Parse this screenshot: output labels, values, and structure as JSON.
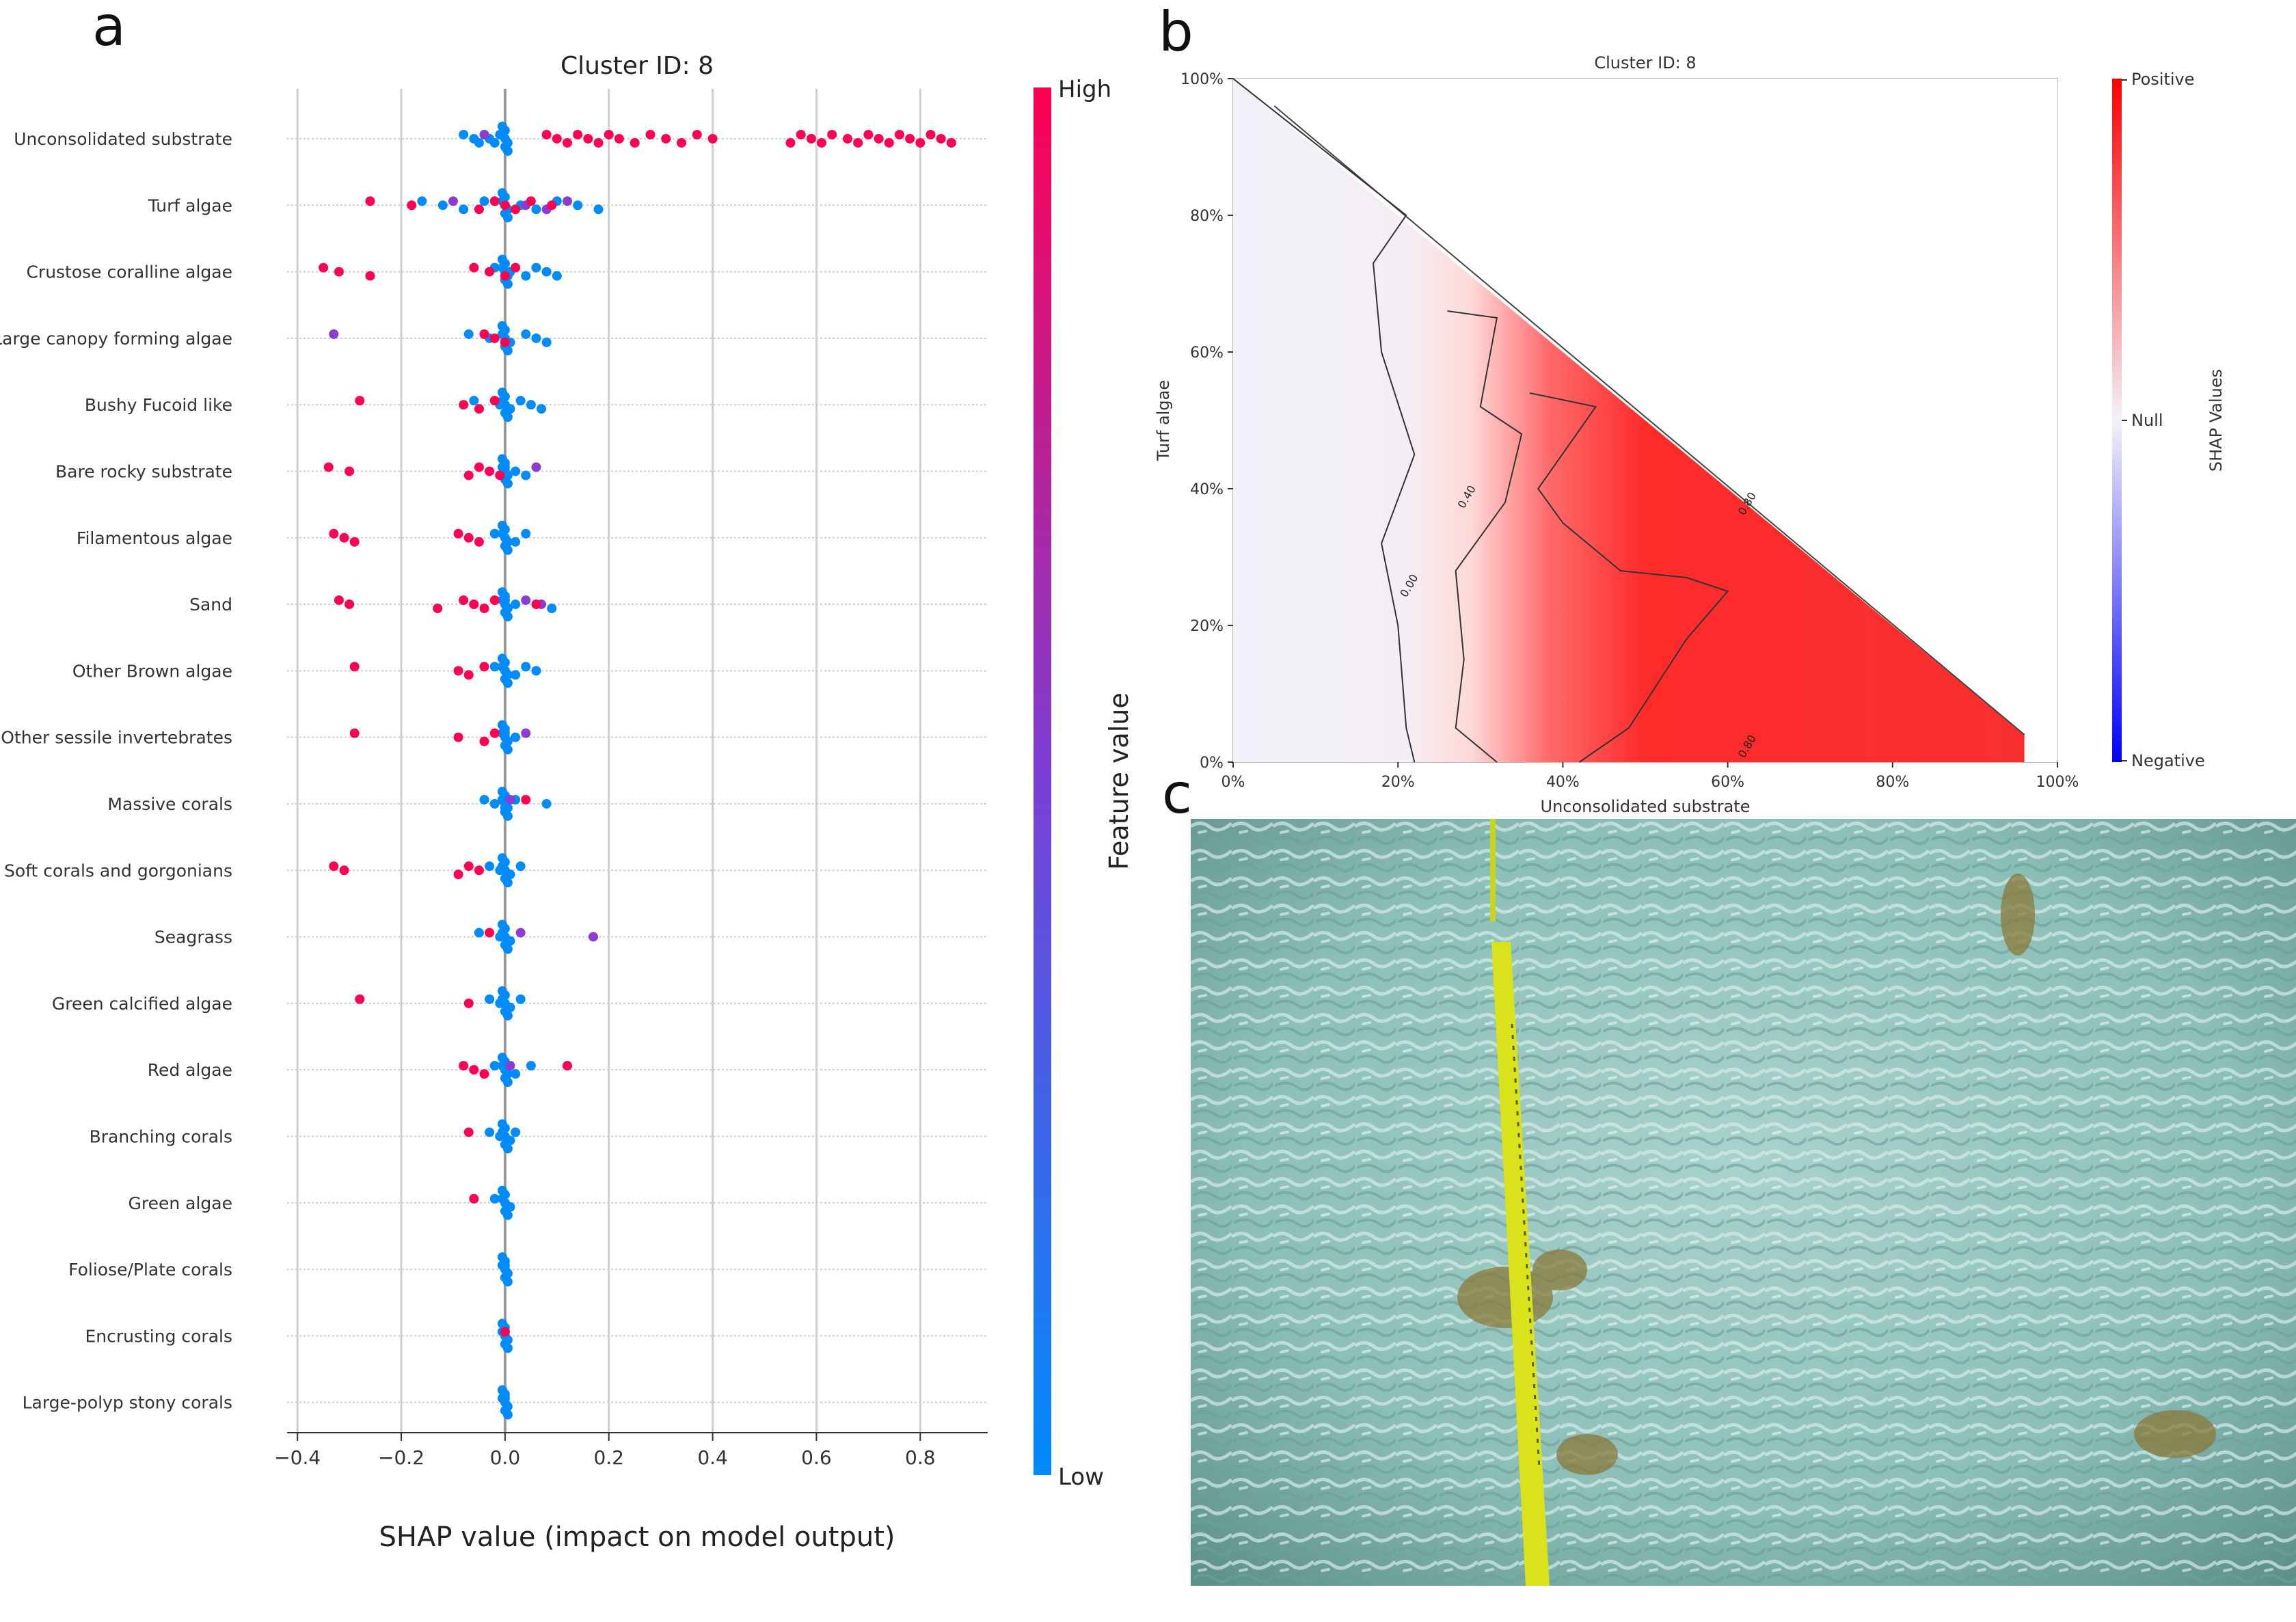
{
  "panels": {
    "a_letter": "a",
    "b_letter": "b",
    "c_letter": "c"
  },
  "chart_data": [
    {
      "type": "scatter",
      "subtype": "shap-beeswarm",
      "title": "Cluster ID: 8",
      "xlabel": "SHAP value (impact on model output)",
      "ylabel": "",
      "xlim": [
        -0.42,
        0.93
      ],
      "xticks": [
        -0.4,
        -0.2,
        0.0,
        0.2,
        0.4,
        0.6,
        0.8
      ],
      "xtick_labels": [
        "−0.4",
        "−0.2",
        "0.0",
        "0.2",
        "0.4",
        "0.6",
        "0.8"
      ],
      "grid": true,
      "colorbar": {
        "label": "Feature value",
        "high": "High",
        "low": "Low",
        "high_color": "#ff0052",
        "low_color": "#008bfb"
      },
      "features": [
        {
          "name": "Unconsolidated substrate",
          "high_points": [
            0.08,
            0.1,
            0.12,
            0.14,
            0.16,
            0.18,
            0.2,
            0.22,
            0.25,
            0.28,
            0.31,
            0.34,
            0.37,
            0.4,
            0.55,
            0.57,
            0.59,
            0.61,
            0.63,
            0.66,
            0.68,
            0.7,
            0.72,
            0.74,
            0.76,
            0.78,
            0.8,
            0.82,
            0.84,
            0.86
          ],
          "low_points": [
            -0.08,
            -0.06,
            -0.05,
            -0.04,
            -0.03,
            -0.02,
            -0.01
          ],
          "mid_points": [
            -0.04
          ]
        },
        {
          "name": "Turf algae",
          "high_points": [
            -0.26,
            -0.18,
            -0.05,
            -0.02,
            0.0,
            0.02,
            0.05,
            0.09
          ],
          "low_points": [
            -0.16,
            -0.12,
            -0.08,
            -0.04,
            0.03,
            0.06,
            0.1,
            0.14,
            0.18
          ],
          "mid_points": [
            -0.1,
            0.04,
            0.08,
            0.12
          ]
        },
        {
          "name": "Crustose coralline algae",
          "high_points": [
            -0.35,
            -0.32,
            -0.26,
            -0.06,
            -0.03,
            0.0,
            0.02
          ],
          "low_points": [
            -0.02,
            0.01,
            0.04,
            0.06,
            0.08,
            0.1
          ],
          "mid_points": []
        },
        {
          "name": "Large canopy forming algae",
          "high_points": [
            -0.04,
            -0.02,
            0.0
          ],
          "low_points": [
            -0.07,
            -0.03,
            0.01,
            0.04,
            0.06,
            0.08
          ],
          "mid_points": [
            -0.33
          ]
        },
        {
          "name": "Bushy Fucoid like",
          "high_points": [
            -0.28,
            -0.08,
            -0.05,
            -0.02
          ],
          "low_points": [
            -0.06,
            -0.01,
            0.01,
            0.03,
            0.05,
            0.07
          ],
          "mid_points": []
        },
        {
          "name": "Bare rocky substrate",
          "high_points": [
            -0.34,
            -0.3,
            -0.07,
            -0.05,
            -0.03,
            -0.01
          ],
          "low_points": [
            0.0,
            0.02,
            0.04
          ],
          "mid_points": [
            0.06
          ]
        },
        {
          "name": "Filamentous algae",
          "high_points": [
            -0.33,
            -0.31,
            -0.29,
            -0.09,
            -0.07,
            -0.05
          ],
          "low_points": [
            -0.02,
            0.0,
            0.02,
            0.04
          ],
          "mid_points": []
        },
        {
          "name": "Sand",
          "high_points": [
            -0.32,
            -0.3,
            -0.13,
            -0.08,
            -0.06,
            -0.04,
            -0.02,
            0.06
          ],
          "low_points": [
            0.0,
            0.02,
            0.09
          ],
          "mid_points": [
            0.04,
            0.07
          ]
        },
        {
          "name": "Other Brown algae",
          "high_points": [
            -0.29,
            -0.09,
            -0.07,
            -0.04
          ],
          "low_points": [
            -0.02,
            0.0,
            0.02,
            0.04,
            0.06
          ],
          "mid_points": []
        },
        {
          "name": "Other sessile invertebrates",
          "high_points": [
            -0.29,
            -0.09,
            -0.04,
            -0.02
          ],
          "low_points": [
            0.0,
            0.02
          ],
          "mid_points": [
            0.04
          ]
        },
        {
          "name": "Massive corals",
          "high_points": [
            0.04
          ],
          "low_points": [
            -0.04,
            -0.02,
            0.0,
            0.02,
            0.08
          ],
          "mid_points": [
            0.01
          ]
        },
        {
          "name": "Soft corals and gorgonians",
          "high_points": [
            -0.33,
            -0.31,
            -0.09,
            -0.07,
            -0.05
          ],
          "low_points": [
            -0.03,
            -0.01,
            0.01,
            0.03
          ],
          "mid_points": []
        },
        {
          "name": "Seagrass",
          "high_points": [
            -0.03
          ],
          "low_points": [
            -0.05,
            -0.01,
            0.01
          ],
          "mid_points": [
            0.03,
            0.17
          ]
        },
        {
          "name": "Green calcified algae",
          "high_points": [
            -0.28,
            -0.07
          ],
          "low_points": [
            -0.03,
            -0.01,
            0.01,
            0.03
          ],
          "mid_points": []
        },
        {
          "name": "Red algae",
          "high_points": [
            -0.08,
            -0.06,
            -0.04,
            0.12
          ],
          "low_points": [
            -0.02,
            0.0,
            0.02,
            0.05
          ],
          "mid_points": [
            0.01
          ]
        },
        {
          "name": "Branching corals",
          "high_points": [
            -0.07
          ],
          "low_points": [
            -0.03,
            -0.01,
            0.01,
            0.02
          ],
          "mid_points": []
        },
        {
          "name": "Green algae",
          "high_points": [
            -0.06
          ],
          "low_points": [
            -0.02,
            0.0,
            0.01
          ],
          "mid_points": []
        },
        {
          "name": "Foliose/Plate corals",
          "high_points": [],
          "low_points": [
            0.0
          ],
          "mid_points": []
        },
        {
          "name": "Encrusting corals",
          "high_points": [
            0.0
          ],
          "low_points": [
            0.0
          ],
          "mid_points": []
        },
        {
          "name": "Large-polyp stony corals",
          "high_points": [],
          "low_points": [
            0.0
          ],
          "mid_points": []
        }
      ]
    },
    {
      "type": "heatmap",
      "subtype": "contour-map",
      "title": "Cluster ID: 8",
      "xlabel": "Unconsolidated substrate",
      "ylabel": "Turf algae",
      "xlim": [
        0,
        100
      ],
      "ylim": [
        0,
        100
      ],
      "xtick_labels": [
        "0%",
        "20%",
        "40%",
        "60%",
        "80%",
        "100%"
      ],
      "ytick_labels": [
        "0%",
        "20%",
        "40%",
        "60%",
        "80%",
        "100%"
      ],
      "colorbar": {
        "label": "SHAP Values",
        "top": "Positive",
        "middle": "Null",
        "bottom": "Negative",
        "positive_color": "#ff0000",
        "negative_color": "#0000ff"
      },
      "contour_labels": [
        "0.00",
        "0.40",
        "0.80",
        "0.80"
      ],
      "contours": {
        "zero": [
          [
            0,
            100
          ],
          [
            21,
            80
          ],
          [
            17,
            73
          ],
          [
            18,
            60
          ],
          [
            22,
            45
          ],
          [
            18,
            32
          ],
          [
            20,
            20
          ],
          [
            21,
            5
          ],
          [
            22,
            0
          ]
        ],
        "forty": [
          [
            26,
            66
          ],
          [
            32,
            65
          ],
          [
            30,
            52
          ],
          [
            35,
            48
          ],
          [
            33,
            38
          ],
          [
            27,
            28
          ],
          [
            28,
            15
          ],
          [
            27,
            5
          ],
          [
            32,
            0
          ]
        ],
        "eighty": [
          [
            36,
            54
          ],
          [
            44,
            52
          ],
          [
            37,
            40
          ],
          [
            40,
            35
          ],
          [
            47,
            28
          ],
          [
            55,
            27
          ],
          [
            60,
            25
          ],
          [
            55,
            18
          ],
          [
            48,
            5
          ],
          [
            42,
            0
          ]
        ]
      }
    }
  ],
  "photo": {
    "description_colors": [
      "#7fb9b3",
      "#a8d1cb",
      "#5e8f8a"
    ],
    "tape_color": "#d9e21a"
  }
}
